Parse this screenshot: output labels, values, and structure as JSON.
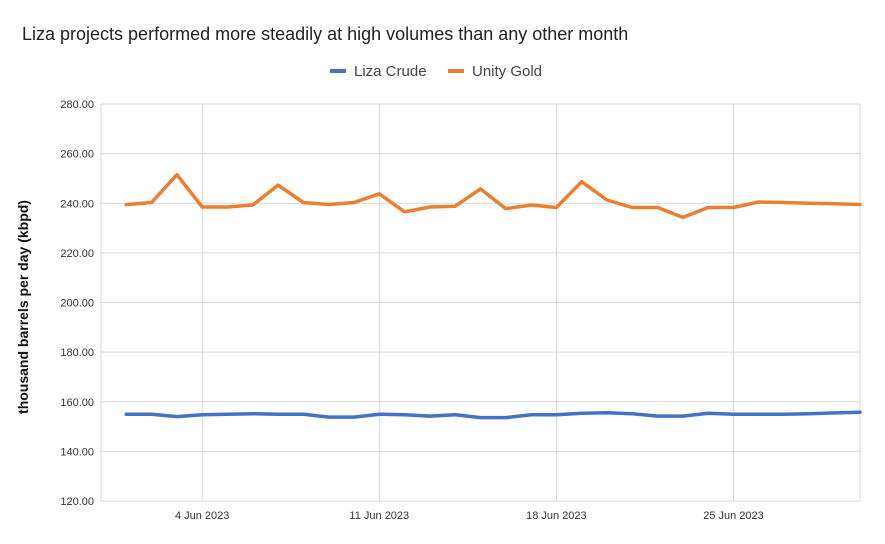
{
  "chart_data": {
    "type": "line",
    "title": "Liza projects performed more steadily at high volumes than any other month",
    "xlabel": "",
    "ylabel": "thousand barrels per day (kbpd)",
    "ylim": [
      120,
      280
    ],
    "yticks": [
      "120.00",
      "140.00",
      "160.00",
      "180.00",
      "200.00",
      "220.00",
      "240.00",
      "260.00",
      "280.00"
    ],
    "xlim": [
      "2023-05-31",
      "2023-06-30"
    ],
    "xticks": [
      {
        "date": "2023-06-04",
        "label": "4 Jun 2023"
      },
      {
        "date": "2023-06-11",
        "label": "11 Jun 2023"
      },
      {
        "date": "2023-06-18",
        "label": "18 Jun 2023"
      },
      {
        "date": "2023-06-25",
        "label": "25 Jun 2023"
      }
    ],
    "grid": true,
    "legend_position": "top-center",
    "x": [
      "2023-06-01",
      "2023-06-02",
      "2023-06-03",
      "2023-06-04",
      "2023-06-05",
      "2023-06-06",
      "2023-06-07",
      "2023-06-08",
      "2023-06-09",
      "2023-06-10",
      "2023-06-11",
      "2023-06-12",
      "2023-06-13",
      "2023-06-14",
      "2023-06-15",
      "2023-06-16",
      "2023-06-17",
      "2023-06-18",
      "2023-06-19",
      "2023-06-20",
      "2023-06-21",
      "2023-06-22",
      "2023-06-23",
      "2023-06-24",
      "2023-06-25",
      "2023-06-26",
      "2023-06-27",
      "2023-06-28",
      "2023-06-29",
      "2023-06-30"
    ],
    "series": [
      {
        "name": "Liza Crude",
        "color": "#4472c4",
        "values": [
          155.0,
          155.0,
          154.0,
          154.8,
          155.0,
          155.2,
          155.0,
          155.0,
          153.8,
          153.8,
          155.0,
          154.8,
          154.2,
          154.8,
          153.6,
          153.6,
          154.8,
          154.8,
          155.4,
          155.6,
          155.2,
          154.2,
          154.2,
          155.4,
          155.0,
          155.0,
          155.0,
          155.2,
          155.5,
          155.8
        ]
      },
      {
        "name": "Unity Gold",
        "color": "#ed7d31",
        "values": [
          239.5,
          240.3,
          251.5,
          238.5,
          238.5,
          239.3,
          247.3,
          240.3,
          239.5,
          240.3,
          243.8,
          236.5,
          238.5,
          238.8,
          245.8,
          237.8,
          239.3,
          238.3,
          248.7,
          241.3,
          238.3,
          238.3,
          234.3,
          238.3,
          238.3,
          240.5,
          240.3,
          240.0,
          239.8,
          239.5
        ]
      }
    ]
  }
}
